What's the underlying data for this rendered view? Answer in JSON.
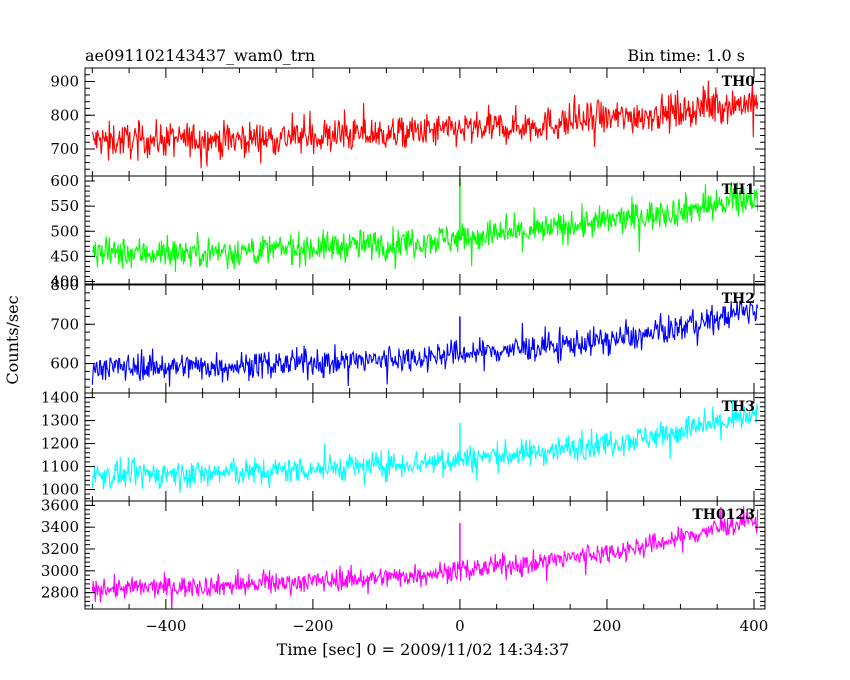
{
  "header": {
    "title": "ae091102143437_wam0_trn",
    "bin_time": "Bin time: 1.0 s"
  },
  "axes": {
    "xlabel": "Time [sec] 0 = 2009/11/02 14:34:37",
    "ylabel": "Counts/sec"
  },
  "chart_data": {
    "type": "line",
    "x_range": [
      -510,
      415
    ],
    "x_ticks": [
      -400,
      -200,
      0,
      200,
      400
    ],
    "x_tick_labels": [
      "−400",
      "−200",
      "0",
      "200",
      "400"
    ],
    "xlabel": "Time [sec] 0 = 2009/11/02 14:34:37",
    "ylabel": "Counts/sec",
    "grid": false,
    "panels": [
      {
        "name": "TH0",
        "color": "#ff0000",
        "ylim": [
          620,
          940
        ],
        "y_ticks": [
          700,
          800,
          900
        ],
        "y_tick_labels": [
          "700",
          "800",
          "900"
        ],
        "x_start": -500,
        "x_end": 405,
        "baseline": [
          [
            -500,
            725
          ],
          [
            -300,
            730
          ],
          [
            -100,
            745
          ],
          [
            100,
            770
          ],
          [
            250,
            800
          ],
          [
            405,
            840
          ]
        ],
        "noise": 42,
        "spikes": []
      },
      {
        "name": "TH1",
        "color": "#00ff00",
        "ylim": [
          395,
          610
        ],
        "y_ticks": [
          400,
          450,
          500,
          550,
          600
        ],
        "y_tick_labels": [
          "400",
          "450",
          "500",
          "550",
          "600"
        ],
        "x_start": -500,
        "x_end": 405,
        "baseline": [
          [
            -500,
            455
          ],
          [
            -300,
            460
          ],
          [
            -100,
            475
          ],
          [
            100,
            500
          ],
          [
            250,
            530
          ],
          [
            405,
            565
          ]
        ],
        "noise": 25,
        "spikes": [
          [
            0,
            605
          ]
        ]
      },
      {
        "name": "TH2",
        "color": "#0000ff",
        "ylim": [
          525,
          800
        ],
        "y_ticks": [
          600,
          700,
          800
        ],
        "y_tick_labels": [
          "600",
          "700",
          "800"
        ],
        "x_start": -500,
        "x_end": 405,
        "baseline": [
          [
            -500,
            590
          ],
          [
            -300,
            595
          ],
          [
            -100,
            610
          ],
          [
            100,
            640
          ],
          [
            250,
            670
          ],
          [
            405,
            740
          ]
        ],
        "noise": 28,
        "spikes": [
          [
            0,
            720
          ]
        ]
      },
      {
        "name": "TH3",
        "color": "#00ffff",
        "ylim": [
          950,
          1420
        ],
        "y_ticks": [
          1000,
          1100,
          1200,
          1300,
          1400
        ],
        "y_tick_labels": [
          "1000",
          "1100",
          "1200",
          "1300",
          "1400"
        ],
        "x_start": -500,
        "x_end": 405,
        "baseline": [
          [
            -500,
            1060
          ],
          [
            -300,
            1075
          ],
          [
            -100,
            1105
          ],
          [
            100,
            1160
          ],
          [
            250,
            1225
          ],
          [
            405,
            1320
          ]
        ],
        "noise": 48,
        "spikes": [
          [
            0,
            1290
          ]
        ]
      },
      {
        "name": "TH0123",
        "color": "#ff00ff",
        "ylim": [
          2650,
          3640
        ],
        "y_ticks": [
          2800,
          3000,
          3200,
          3400,
          3600
        ],
        "y_tick_labels": [
          "2800",
          "3000",
          "3200",
          "3400",
          "3600"
        ],
        "x_start": -500,
        "x_end": 405,
        "baseline": [
          [
            -500,
            2830
          ],
          [
            -300,
            2870
          ],
          [
            -100,
            2940
          ],
          [
            100,
            3070
          ],
          [
            250,
            3220
          ],
          [
            405,
            3480
          ]
        ],
        "noise": 80,
        "spikes": [
          [
            0,
            3440
          ]
        ]
      }
    ]
  }
}
